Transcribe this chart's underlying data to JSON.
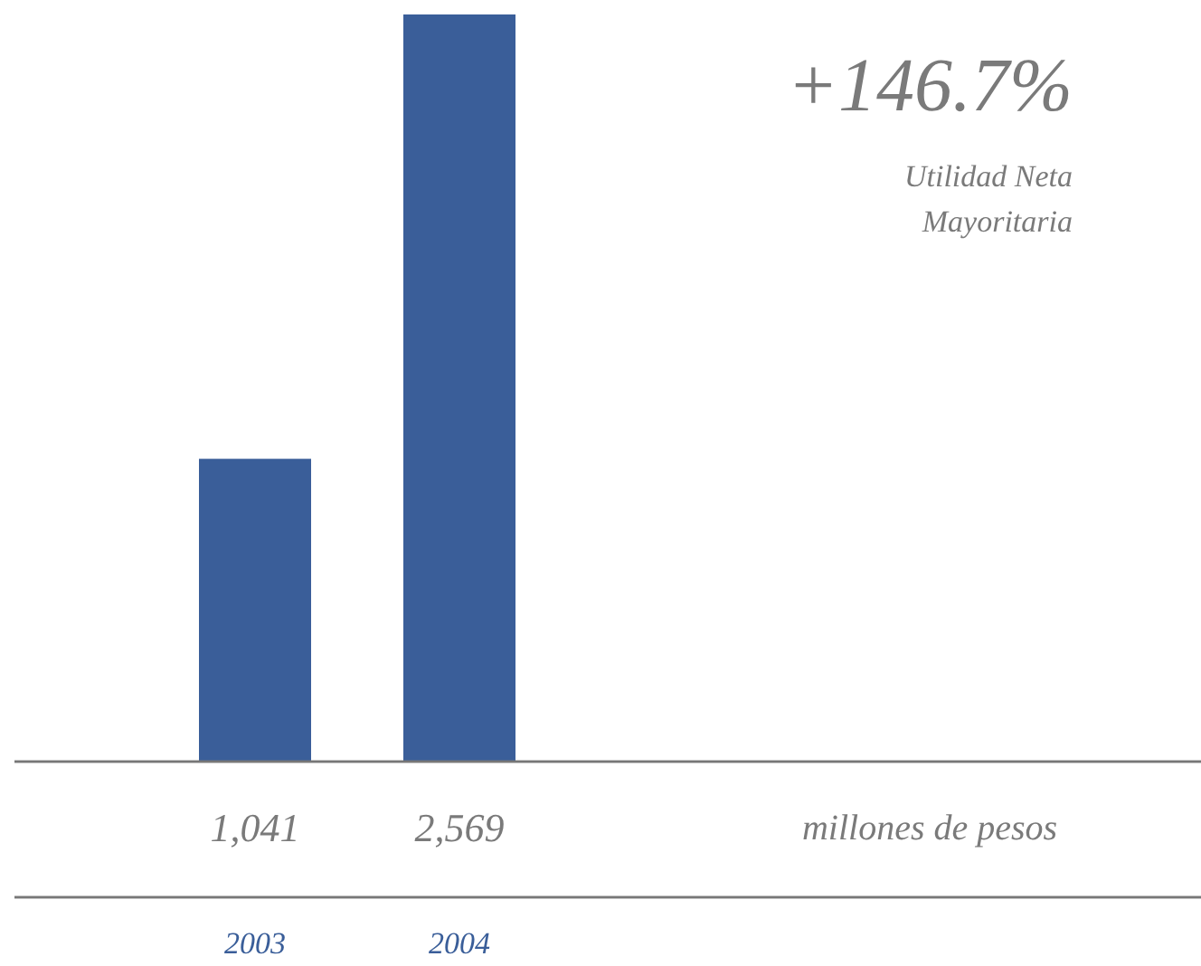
{
  "chart_data": {
    "type": "bar",
    "categories": [
      "2003",
      "2004"
    ],
    "values": [
      1041,
      2569
    ],
    "value_labels": [
      "1,041",
      "2,569"
    ],
    "color": "#3a5e99",
    "annotations": [
      "+146.7%",
      "Utilidad Neta",
      "Mayoritaria",
      "millones de pesos"
    ]
  }
}
